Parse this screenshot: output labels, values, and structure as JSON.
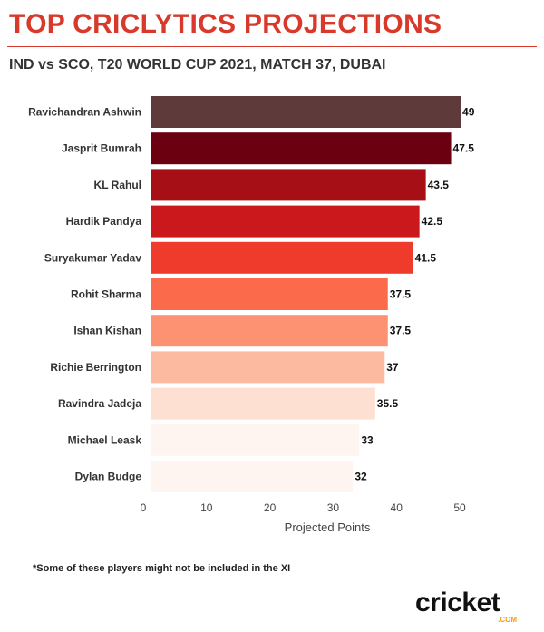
{
  "header": {
    "title": "TOP CRICLYTICS PROJECTIONS",
    "subtitle": "IND vs SCO, T20 WORLD CUP 2021, MATCH 37, DUBAI"
  },
  "chart_data": {
    "type": "bar",
    "orientation": "horizontal",
    "categories": [
      "Ravichandran Ashwin",
      "Jasprit Bumrah",
      "KL Rahul",
      "Hardik Pandya",
      "Suryakumar Yadav",
      "Rohit Sharma",
      "Ishan Kishan",
      "Richie Berrington",
      "Ravindra Jadeja",
      "Michael Leask",
      "Dylan Budge"
    ],
    "values": [
      49,
      47.5,
      43.5,
      42.5,
      41.5,
      37.5,
      37.5,
      37,
      35.5,
      33,
      32
    ],
    "value_labels": [
      "49",
      "47.5",
      "43.5",
      "42.5",
      "41.5",
      "37.5",
      "37.5",
      "37",
      "35.5",
      "33",
      "32"
    ],
    "bar_colors": [
      "#5e3a3a",
      "#6b0010",
      "#a50f15",
      "#cb181d",
      "#ef3b2c",
      "#fb6a4a",
      "#fc9272",
      "#fcbba1",
      "#fee0d2",
      "#fff5f0",
      "#fff5f0"
    ],
    "xlabel": "Projected Points",
    "ylabel": "",
    "xlim": [
      0,
      52
    ],
    "xticks": [
      0,
      10,
      20,
      30,
      40,
      50
    ],
    "grid": false,
    "legend": "none"
  },
  "footnote": "*Some of these players might not be included in the XI",
  "logo": {
    "word": "cricket",
    "sub": ".COM",
    "accent": "#f39c12"
  }
}
